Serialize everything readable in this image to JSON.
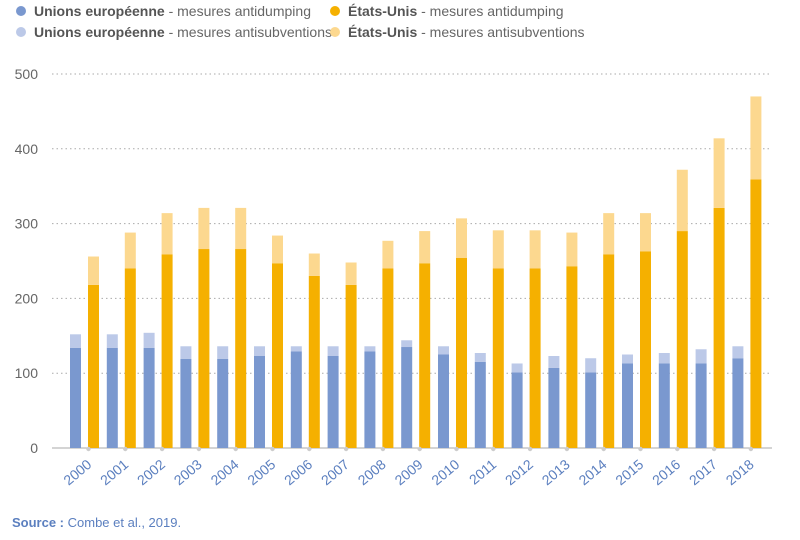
{
  "legend": [
    {
      "name": "Unions européenne",
      "suffix": " - mesures antidumping",
      "color": "#7a98cf"
    },
    {
      "name": "Unions européenne",
      "suffix": " - mesures antisubventions",
      "color": "#bcc9e8"
    },
    {
      "name": "États-Unis",
      "suffix": " - mesures antidumping",
      "color": "#f5b000"
    },
    {
      "name": "États-Unis",
      "suffix": " - mesures antisubventions",
      "color": "#fcd88f"
    }
  ],
  "source": {
    "label": "Source : ",
    "text": "Combe et al., 2019."
  },
  "chart_data": {
    "type": "bar",
    "stacked": true,
    "grouped": true,
    "categories": [
      "2000",
      "2001",
      "2002",
      "2003",
      "2004",
      "2005",
      "2006",
      "2007",
      "2008",
      "2009",
      "2010",
      "2011",
      "2012",
      "2013",
      "2014",
      "2015",
      "2016",
      "2017",
      "2018"
    ],
    "ylim": [
      0,
      500
    ],
    "yticks": [
      0,
      100,
      200,
      300,
      400,
      500
    ],
    "grid": "horizontal-dotted",
    "legend_position": "top",
    "title": "",
    "xlabel": "",
    "ylabel": "",
    "groups": [
      {
        "name": "Unions européenne",
        "series": [
          {
            "name": "Unions européenne - mesures antidumping",
            "color": "#7a98cf",
            "values": [
              134,
              134,
              134,
              119,
              119,
              123,
              129,
              123,
              129,
              135,
              125,
              115,
              101,
              107,
              101,
              113,
              113,
              113,
              120
            ]
          },
          {
            "name": "Unions européenne - mesures antisubventions",
            "color": "#bcc9e8",
            "values": [
              18,
              18,
              20,
              17,
              17,
              13,
              7,
              13,
              7,
              9,
              11,
              12,
              12,
              16,
              19,
              12,
              14,
              19,
              16
            ]
          }
        ]
      },
      {
        "name": "États-Unis",
        "series": [
          {
            "name": "États-Unis - mesures antidumping",
            "color": "#f5b000",
            "values": [
              218,
              240,
              259,
              266,
              266,
              247,
              230,
              218,
              240,
              247,
              254,
              240,
              240,
              243,
              259,
              263,
              290,
              321,
              359
            ]
          },
          {
            "name": "États-Unis - mesures antisubventions",
            "color": "#fcd88f",
            "values": [
              38,
              48,
              55,
              55,
              55,
              37,
              30,
              30,
              37,
              43,
              53,
              51,
              51,
              45,
              55,
              51,
              82,
              93,
              111
            ]
          }
        ]
      }
    ]
  }
}
